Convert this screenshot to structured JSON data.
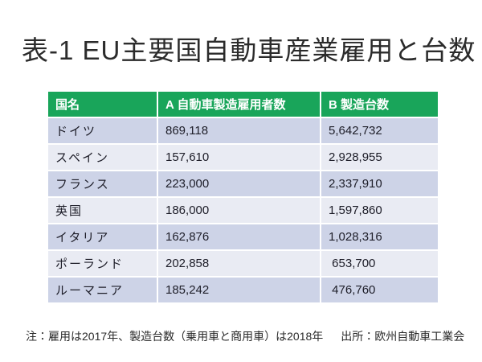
{
  "slide": {
    "title": "表-1 EU主要国自動車産業雇用と台数",
    "accent_green": "#19A55A",
    "row_color_dark": "#CDD3E7",
    "row_color_light": "#E9EBF3"
  },
  "table": {
    "columns": [
      {
        "label": "国名"
      },
      {
        "label": "A 自動車製造雇用者数"
      },
      {
        "label": "B 製造台数"
      }
    ],
    "rows": [
      {
        "country": "ドイツ",
        "employees": "869,118",
        "units": "5,642,732"
      },
      {
        "country": "スペイン",
        "employees": "157,610",
        "units": "2,928,955"
      },
      {
        "country": "フランス",
        "employees": "223,000",
        "units": "2,337,910"
      },
      {
        "country": "英国",
        "employees": "186,000",
        "units": "1,597,860"
      },
      {
        "country": "イタリア",
        "employees": "162,876",
        "units": "1,028,316"
      },
      {
        "country": "ポーランド",
        "employees": "202,858",
        "units": " 653,700"
      },
      {
        "country": "ルーマニア",
        "employees": "185,242",
        "units": " 476,760"
      }
    ]
  },
  "footnote": {
    "note": "注：雇用は2017年、製造台数（乗用車と商用車）は2018年",
    "source": "出所：欧州自動車工業会"
  }
}
